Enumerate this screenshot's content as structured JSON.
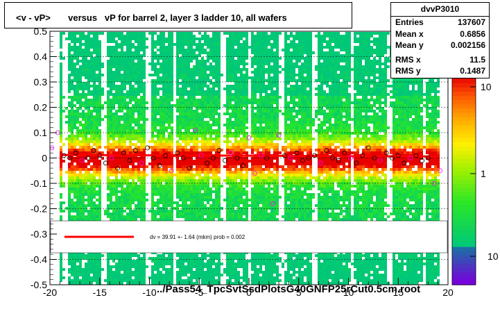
{
  "title": "<v - vP>       versus   vP for barrel 2, layer 3 ladder 10, all wafers",
  "footer": "../Pass54_TpcSvtSsdPlotsG40GNFP25rCut0.5cm.root",
  "stats": {
    "name": "dvvP3010",
    "rows": [
      {
        "key": "Entries",
        "value": "137607"
      },
      {
        "key": "Mean x",
        "value": "0.6856"
      },
      {
        "key": "Mean y",
        "value": "0.002156"
      },
      {
        "key": "RMS x",
        "value": "11.5"
      },
      {
        "key": "RMS y",
        "value": "0.1487"
      }
    ]
  },
  "legend": {
    "text": "dv =   39.91 +-  1.64 (mkm) prob = 0.002",
    "color": "#ff0000"
  },
  "colors": {
    "fit_line": "#ff0000",
    "profile_markers": "#000000",
    "outlier_markers": "#ff00ff"
  },
  "chart_data": {
    "type": "heatmap",
    "xlim": [
      -20,
      20
    ],
    "ylim": [
      -0.5,
      0.5
    ],
    "x_ticks": [
      "-20",
      "-15",
      "-10",
      "-5",
      "0",
      "5",
      "10",
      "15",
      "20"
    ],
    "y_ticks": [
      "-0.5",
      "-0.4",
      "-0.3",
      "-0.2",
      "-0.1",
      "0",
      "0.1",
      "0.2",
      "0.3",
      "0.4",
      "0.5"
    ],
    "colorbar": {
      "scale": "log",
      "labels": [
        "10",
        "1",
        "10"
      ],
      "label_note": "last label is partially cut off at the bottom (10^-1)"
    },
    "fit": {
      "type": "line",
      "y_at_xmin": 0.012,
      "y_at_xmax": 0.006,
      "x_range": [
        -19,
        19
      ]
    },
    "profile_points": {
      "x": [
        -19.8,
        -19.2,
        -18.6,
        -18,
        -17.4,
        -16.8,
        -16.2,
        -15.6,
        -15,
        -14.4,
        -13.8,
        -13.2,
        -12.6,
        -12,
        -11.4,
        -10.8,
        -10.2,
        -9.6,
        -9,
        -8.4,
        -7.8,
        -7.2,
        -6.6,
        -6,
        -5.4,
        -4.8,
        -4.2,
        -3.6,
        -3,
        -2.4,
        -1.8,
        -1.2,
        -0.6,
        0,
        0.6,
        1.2,
        1.8,
        2.4,
        3,
        3.6,
        4.2,
        4.8,
        5.4,
        6,
        6.6,
        7.2,
        7.8,
        8.4,
        9,
        9.6,
        10.2,
        10.8,
        11.4,
        12,
        12.6,
        13.2,
        13.8,
        14.4,
        15,
        15.6,
        16.2,
        16.8,
        17.4,
        18,
        18.6,
        19.2
      ],
      "y": [
        0.04,
        0.1,
        0.01,
        0.0,
        0.02,
        -0.01,
        0.0,
        0.03,
        0.01,
        -0.02,
        0.0,
        -0.04,
        0.02,
        -0.01,
        0.03,
        -0.02,
        0.04,
        0.0,
        -0.03,
        0.01,
        -0.05,
        0.02,
        0.0,
        -0.04,
        0.11,
        0.01,
        -0.02,
        0.0,
        0.03,
        -0.01,
        0.02,
        0.0,
        -0.03,
        0.08,
        -0.06,
        0.01,
        0.0,
        -0.18,
        0.09,
        0.01,
        0.0,
        0.02,
        -0.01,
        0.0,
        0.01,
        -0.02,
        0.03,
        0.0,
        -0.01,
        0.02,
        0.0,
        -0.02,
        0.01,
        0.04,
        0.0,
        -0.01,
        0.02,
        0.0,
        0.01,
        -0.02,
        0.0,
        0.01,
        -0.01,
        0.0,
        -0.1,
        -0.05
      ]
    }
  }
}
